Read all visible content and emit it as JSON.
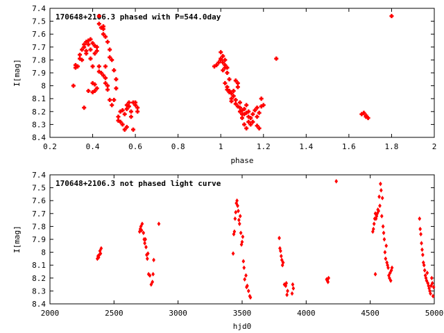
{
  "chart_data": [
    {
      "type": "scatter",
      "title": "170648+2106.3 phased with P=544.0day",
      "xlabel": "phase",
      "ylabel": "I[mag]",
      "xlim": [
        0.2,
        2.0
      ],
      "ylim": [
        8.4,
        7.4
      ],
      "y_inverted": true,
      "xticks": [
        "0.2",
        "0.4",
        "0.6",
        "0.8",
        "1",
        "1.2",
        "1.4",
        "1.6",
        "1.8",
        "2"
      ],
      "yticks": [
        "7.4",
        "7.5",
        "7.6",
        "7.7",
        "7.8",
        "7.9",
        "8",
        "8.1",
        "8.2",
        "8.3",
        "8.4"
      ],
      "marker": "cross",
      "color": "#ff0000",
      "points": [
        [
          0.31,
          8.0
        ],
        [
          0.32,
          7.86
        ],
        [
          0.32,
          7.84
        ],
        [
          0.33,
          7.85
        ],
        [
          0.34,
          7.79
        ],
        [
          0.34,
          7.76
        ],
        [
          0.35,
          7.8
        ],
        [
          0.35,
          7.72
        ],
        [
          0.36,
          7.7
        ],
        [
          0.36,
          7.68
        ],
        [
          0.36,
          8.17
        ],
        [
          0.37,
          7.73
        ],
        [
          0.37,
          7.66
        ],
        [
          0.37,
          7.75
        ],
        [
          0.38,
          7.68
        ],
        [
          0.38,
          7.65
        ],
        [
          0.38,
          8.04
        ],
        [
          0.39,
          7.72
        ],
        [
          0.39,
          7.64
        ],
        [
          0.39,
          7.79
        ],
        [
          0.4,
          7.67
        ],
        [
          0.4,
          7.85
        ],
        [
          0.4,
          7.98
        ],
        [
          0.4,
          8.05
        ],
        [
          0.41,
          8.04
        ],
        [
          0.41,
          7.69
        ],
        [
          0.41,
          7.75
        ],
        [
          0.41,
          7.99
        ],
        [
          0.42,
          7.7
        ],
        [
          0.42,
          7.73
        ],
        [
          0.42,
          8.02
        ],
        [
          0.43,
          7.85
        ],
        [
          0.43,
          7.89
        ],
        [
          0.43,
          7.52
        ],
        [
          0.43,
          7.46
        ],
        [
          0.44,
          7.55
        ],
        [
          0.44,
          7.9
        ],
        [
          0.45,
          7.54
        ],
        [
          0.45,
          7.56
        ],
        [
          0.45,
          7.6
        ],
        [
          0.45,
          7.92
        ],
        [
          0.46,
          7.62
        ],
        [
          0.46,
          7.85
        ],
        [
          0.46,
          7.94
        ],
        [
          0.46,
          7.98
        ],
        [
          0.47,
          7.66
        ],
        [
          0.47,
          8.0
        ],
        [
          0.47,
          8.03
        ],
        [
          0.48,
          7.72
        ],
        [
          0.48,
          7.78
        ],
        [
          0.48,
          8.11
        ],
        [
          0.49,
          8.15
        ],
        [
          0.49,
          7.8
        ],
        [
          0.5,
          8.11
        ],
        [
          0.5,
          7.88
        ],
        [
          0.51,
          7.95
        ],
        [
          0.51,
          8.02
        ],
        [
          0.52,
          8.24
        ],
        [
          0.52,
          8.27
        ],
        [
          0.53,
          8.2
        ],
        [
          0.53,
          8.28
        ],
        [
          0.54,
          8.3
        ],
        [
          0.54,
          8.19
        ],
        [
          0.55,
          8.34
        ],
        [
          0.55,
          8.22
        ],
        [
          0.56,
          8.32
        ],
        [
          0.56,
          8.15
        ],
        [
          0.56,
          8.18
        ],
        [
          0.57,
          8.13
        ],
        [
          0.57,
          8.16
        ],
        [
          0.58,
          8.24
        ],
        [
          0.58,
          8.2
        ],
        [
          0.59,
          8.13
        ],
        [
          0.59,
          8.34
        ],
        [
          0.6,
          8.15
        ],
        [
          0.6,
          8.13
        ],
        [
          0.61,
          8.2
        ],
        [
          0.61,
          8.17
        ],
        [
          0.97,
          7.85
        ],
        [
          0.98,
          7.84
        ],
        [
          0.99,
          7.82
        ],
        [
          1.0,
          7.79
        ],
        [
          1.0,
          7.74
        ],
        [
          1.0,
          7.8
        ],
        [
          1.01,
          7.82
        ],
        [
          1.01,
          7.77
        ],
        [
          1.01,
          7.88
        ],
        [
          1.02,
          7.84
        ],
        [
          1.02,
          7.8
        ],
        [
          1.02,
          7.86
        ],
        [
          1.02,
          7.98
        ],
        [
          1.03,
          7.86
        ],
        [
          1.03,
          8.01
        ],
        [
          1.03,
          8.03
        ],
        [
          1.03,
          7.9
        ],
        [
          1.04,
          8.04
        ],
        [
          1.04,
          8.05
        ],
        [
          1.04,
          7.95
        ],
        [
          1.05,
          8.06
        ],
        [
          1.05,
          8.1
        ],
        [
          1.05,
          8.12
        ],
        [
          1.06,
          8.08
        ],
        [
          1.06,
          8.04
        ],
        [
          1.07,
          8.14
        ],
        [
          1.07,
          8.11
        ],
        [
          1.07,
          7.96
        ],
        [
          1.08,
          8.16
        ],
        [
          1.08,
          8.01
        ],
        [
          1.08,
          7.98
        ],
        [
          1.09,
          8.2
        ],
        [
          1.09,
          8.17
        ],
        [
          1.09,
          8.13
        ],
        [
          1.1,
          8.25
        ],
        [
          1.1,
          8.22
        ],
        [
          1.1,
          8.19
        ],
        [
          1.11,
          8.22
        ],
        [
          1.11,
          8.3
        ],
        [
          1.11,
          8.18
        ],
        [
          1.12,
          8.15
        ],
        [
          1.12,
          8.21
        ],
        [
          1.12,
          8.33
        ],
        [
          1.13,
          8.24
        ],
        [
          1.13,
          8.2
        ],
        [
          1.13,
          8.28
        ],
        [
          1.14,
          8.25
        ],
        [
          1.14,
          8.3
        ],
        [
          1.15,
          8.22
        ],
        [
          1.15,
          8.28
        ],
        [
          1.16,
          8.19
        ],
        [
          1.17,
          8.24
        ],
        [
          1.17,
          8.17
        ],
        [
          1.17,
          8.31
        ],
        [
          1.18,
          8.33
        ],
        [
          1.18,
          8.21
        ],
        [
          1.19,
          8.16
        ],
        [
          1.19,
          8.1
        ],
        [
          1.2,
          8.15
        ],
        [
          1.26,
          7.79
        ],
        [
          1.66,
          8.22
        ],
        [
          1.67,
          8.21
        ],
        [
          1.68,
          8.23
        ],
        [
          1.68,
          8.24
        ],
        [
          1.69,
          8.25
        ],
        [
          1.8,
          7.46
        ]
      ]
    },
    {
      "type": "scatter",
      "title": "170648+2106.3 not phased light curve",
      "xlabel": "hjd0",
      "ylabel": "I[mag]",
      "xlim": [
        2000,
        5000
      ],
      "ylim": [
        8.4,
        7.4
      ],
      "y_inverted": true,
      "xticks": [
        "2000",
        "2500",
        "3000",
        "3500",
        "4000",
        "4500",
        "5000"
      ],
      "yticks": [
        "7.4",
        "7.5",
        "7.6",
        "7.7",
        "7.8",
        "7.9",
        "8",
        "8.1",
        "8.2",
        "8.3",
        "8.4"
      ],
      "marker": "diamond",
      "color": "#ff0000",
      "points": [
        [
          2370,
          8.05
        ],
        [
          2375,
          8.03
        ],
        [
          2380,
          8.04
        ],
        [
          2385,
          8.02
        ],
        [
          2390,
          7.99
        ],
        [
          2395,
          8.01
        ],
        [
          2400,
          7.97
        ],
        [
          2700,
          7.84
        ],
        [
          2705,
          7.82
        ],
        [
          2710,
          7.8
        ],
        [
          2715,
          7.83
        ],
        [
          2720,
          7.78
        ],
        [
          2730,
          7.85
        ],
        [
          2735,
          7.9
        ],
        [
          2740,
          7.93
        ],
        [
          2745,
          7.9
        ],
        [
          2750,
          7.96
        ],
        [
          2755,
          8.02
        ],
        [
          2760,
          8.05
        ],
        [
          2765,
          8.01
        ],
        [
          2770,
          8.17
        ],
        [
          2780,
          8.18
        ],
        [
          2790,
          8.25
        ],
        [
          2800,
          8.23
        ],
        [
          2805,
          8.17
        ],
        [
          2810,
          8.06
        ],
        [
          2850,
          7.78
        ],
        [
          3430,
          8.01
        ],
        [
          3435,
          7.86
        ],
        [
          3440,
          7.84
        ],
        [
          3445,
          7.74
        ],
        [
          3450,
          7.69
        ],
        [
          3455,
          7.62
        ],
        [
          3460,
          7.6
        ],
        [
          3465,
          7.64
        ],
        [
          3470,
          7.68
        ],
        [
          3475,
          7.75
        ],
        [
          3480,
          7.78
        ],
        [
          3485,
          7.72
        ],
        [
          3490,
          7.85
        ],
        [
          3495,
          7.94
        ],
        [
          3500,
          7.92
        ],
        [
          3505,
          7.88
        ],
        [
          3510,
          8.07
        ],
        [
          3515,
          8.12
        ],
        [
          3520,
          8.21
        ],
        [
          3530,
          8.18
        ],
        [
          3535,
          8.27
        ],
        [
          3540,
          8.26
        ],
        [
          3550,
          8.3
        ],
        [
          3560,
          8.34
        ],
        [
          3565,
          8.35
        ],
        [
          3790,
          7.89
        ],
        [
          3795,
          7.97
        ],
        [
          3800,
          7.99
        ],
        [
          3805,
          8.03
        ],
        [
          3810,
          8.06
        ],
        [
          3815,
          8.1
        ],
        [
          3820,
          8.08
        ],
        [
          3830,
          8.25
        ],
        [
          3840,
          8.26
        ],
        [
          3845,
          8.24
        ],
        [
          3850,
          8.33
        ],
        [
          3855,
          8.3
        ],
        [
          3890,
          8.32
        ],
        [
          3895,
          8.25
        ],
        [
          3900,
          8.28
        ],
        [
          4160,
          8.21
        ],
        [
          4165,
          8.22
        ],
        [
          4170,
          8.23
        ],
        [
          4175,
          8.2
        ],
        [
          4235,
          7.45
        ],
        [
          4520,
          7.84
        ],
        [
          4525,
          7.82
        ],
        [
          4530,
          7.78
        ],
        [
          4535,
          7.74
        ],
        [
          4540,
          7.7
        ],
        [
          4545,
          7.74
        ],
        [
          4550,
          7.72
        ],
        [
          4555,
          7.7
        ],
        [
          4560,
          7.67
        ],
        [
          4565,
          7.68
        ],
        [
          4570,
          7.57
        ],
        [
          4575,
          7.64
        ],
        [
          4580,
          7.47
        ],
        [
          4585,
          7.52
        ],
        [
          4590,
          7.72
        ],
        [
          4595,
          7.58
        ],
        [
          4600,
          7.8
        ],
        [
          4605,
          7.85
        ],
        [
          4610,
          7.9
        ],
        [
          4615,
          8.0
        ],
        [
          4620,
          8.05
        ],
        [
          4625,
          7.95
        ],
        [
          4630,
          8.08
        ],
        [
          4635,
          8.1
        ],
        [
          4640,
          8.12
        ],
        [
          4645,
          8.18
        ],
        [
          4650,
          8.2
        ],
        [
          4655,
          8.16
        ],
        [
          4660,
          8.22
        ],
        [
          4665,
          8.14
        ],
        [
          4670,
          8.12
        ],
        [
          4540,
          8.17
        ],
        [
          4885,
          7.74
        ],
        [
          4890,
          7.82
        ],
        [
          4895,
          7.86
        ],
        [
          4900,
          7.93
        ],
        [
          4905,
          7.98
        ],
        [
          4910,
          8.02
        ],
        [
          4915,
          8.08
        ],
        [
          4920,
          8.1
        ],
        [
          4925,
          8.14
        ],
        [
          4930,
          8.18
        ],
        [
          4935,
          8.2
        ],
        [
          4940,
          8.22
        ],
        [
          4945,
          8.16
        ],
        [
          4950,
          8.24
        ],
        [
          4955,
          8.26
        ],
        [
          4960,
          8.28
        ],
        [
          4965,
          8.3
        ],
        [
          4970,
          8.32
        ],
        [
          4975,
          8.26
        ],
        [
          4980,
          8.2
        ],
        [
          4985,
          8.24
        ],
        [
          4990,
          8.34
        ],
        [
          4995,
          8.27
        ]
      ]
    }
  ]
}
